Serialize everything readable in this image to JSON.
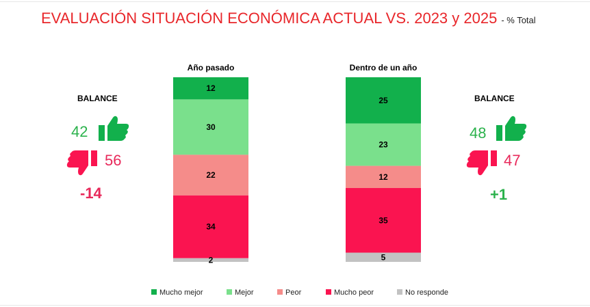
{
  "title": {
    "main": "EVALUACIÓN SITUACIÓN ECONÓMICA ACTUAL VS. 2023 y 2025",
    "sub": "- % Total"
  },
  "left_panel": {
    "label": "BALANCE",
    "positive": "42",
    "negative": "56",
    "net": "-14"
  },
  "right_panel": {
    "label": "BALANCE",
    "positive": "48",
    "negative": "47",
    "net": "+1"
  },
  "colors": {
    "mucho_mejor": "#12b04c",
    "mejor": "#7ae08c",
    "peor": "#f58c8a",
    "mucho_peor": "#fa1450",
    "no_responde": "#c2c2c2",
    "title": "#e8262a",
    "positive_text": "#2bb24c",
    "negative_text": "#e8285a"
  },
  "chart_data": {
    "type": "bar",
    "stacked": true,
    "normalized": true,
    "categories": [
      "Año pasado",
      "Dentro de un año"
    ],
    "series": [
      {
        "name": "Mucho mejor",
        "values": [
          12,
          25
        ]
      },
      {
        "name": "Mejor",
        "values": [
          30,
          23
        ]
      },
      {
        "name": "Peor",
        "values": [
          22,
          12
        ]
      },
      {
        "name": "Mucho peor",
        "values": [
          34,
          35
        ]
      },
      {
        "name": "No responde",
        "values": [
          2,
          5
        ]
      }
    ],
    "ylim": [
      0,
      100
    ],
    "legend_position": "bottom",
    "grid": false
  }
}
